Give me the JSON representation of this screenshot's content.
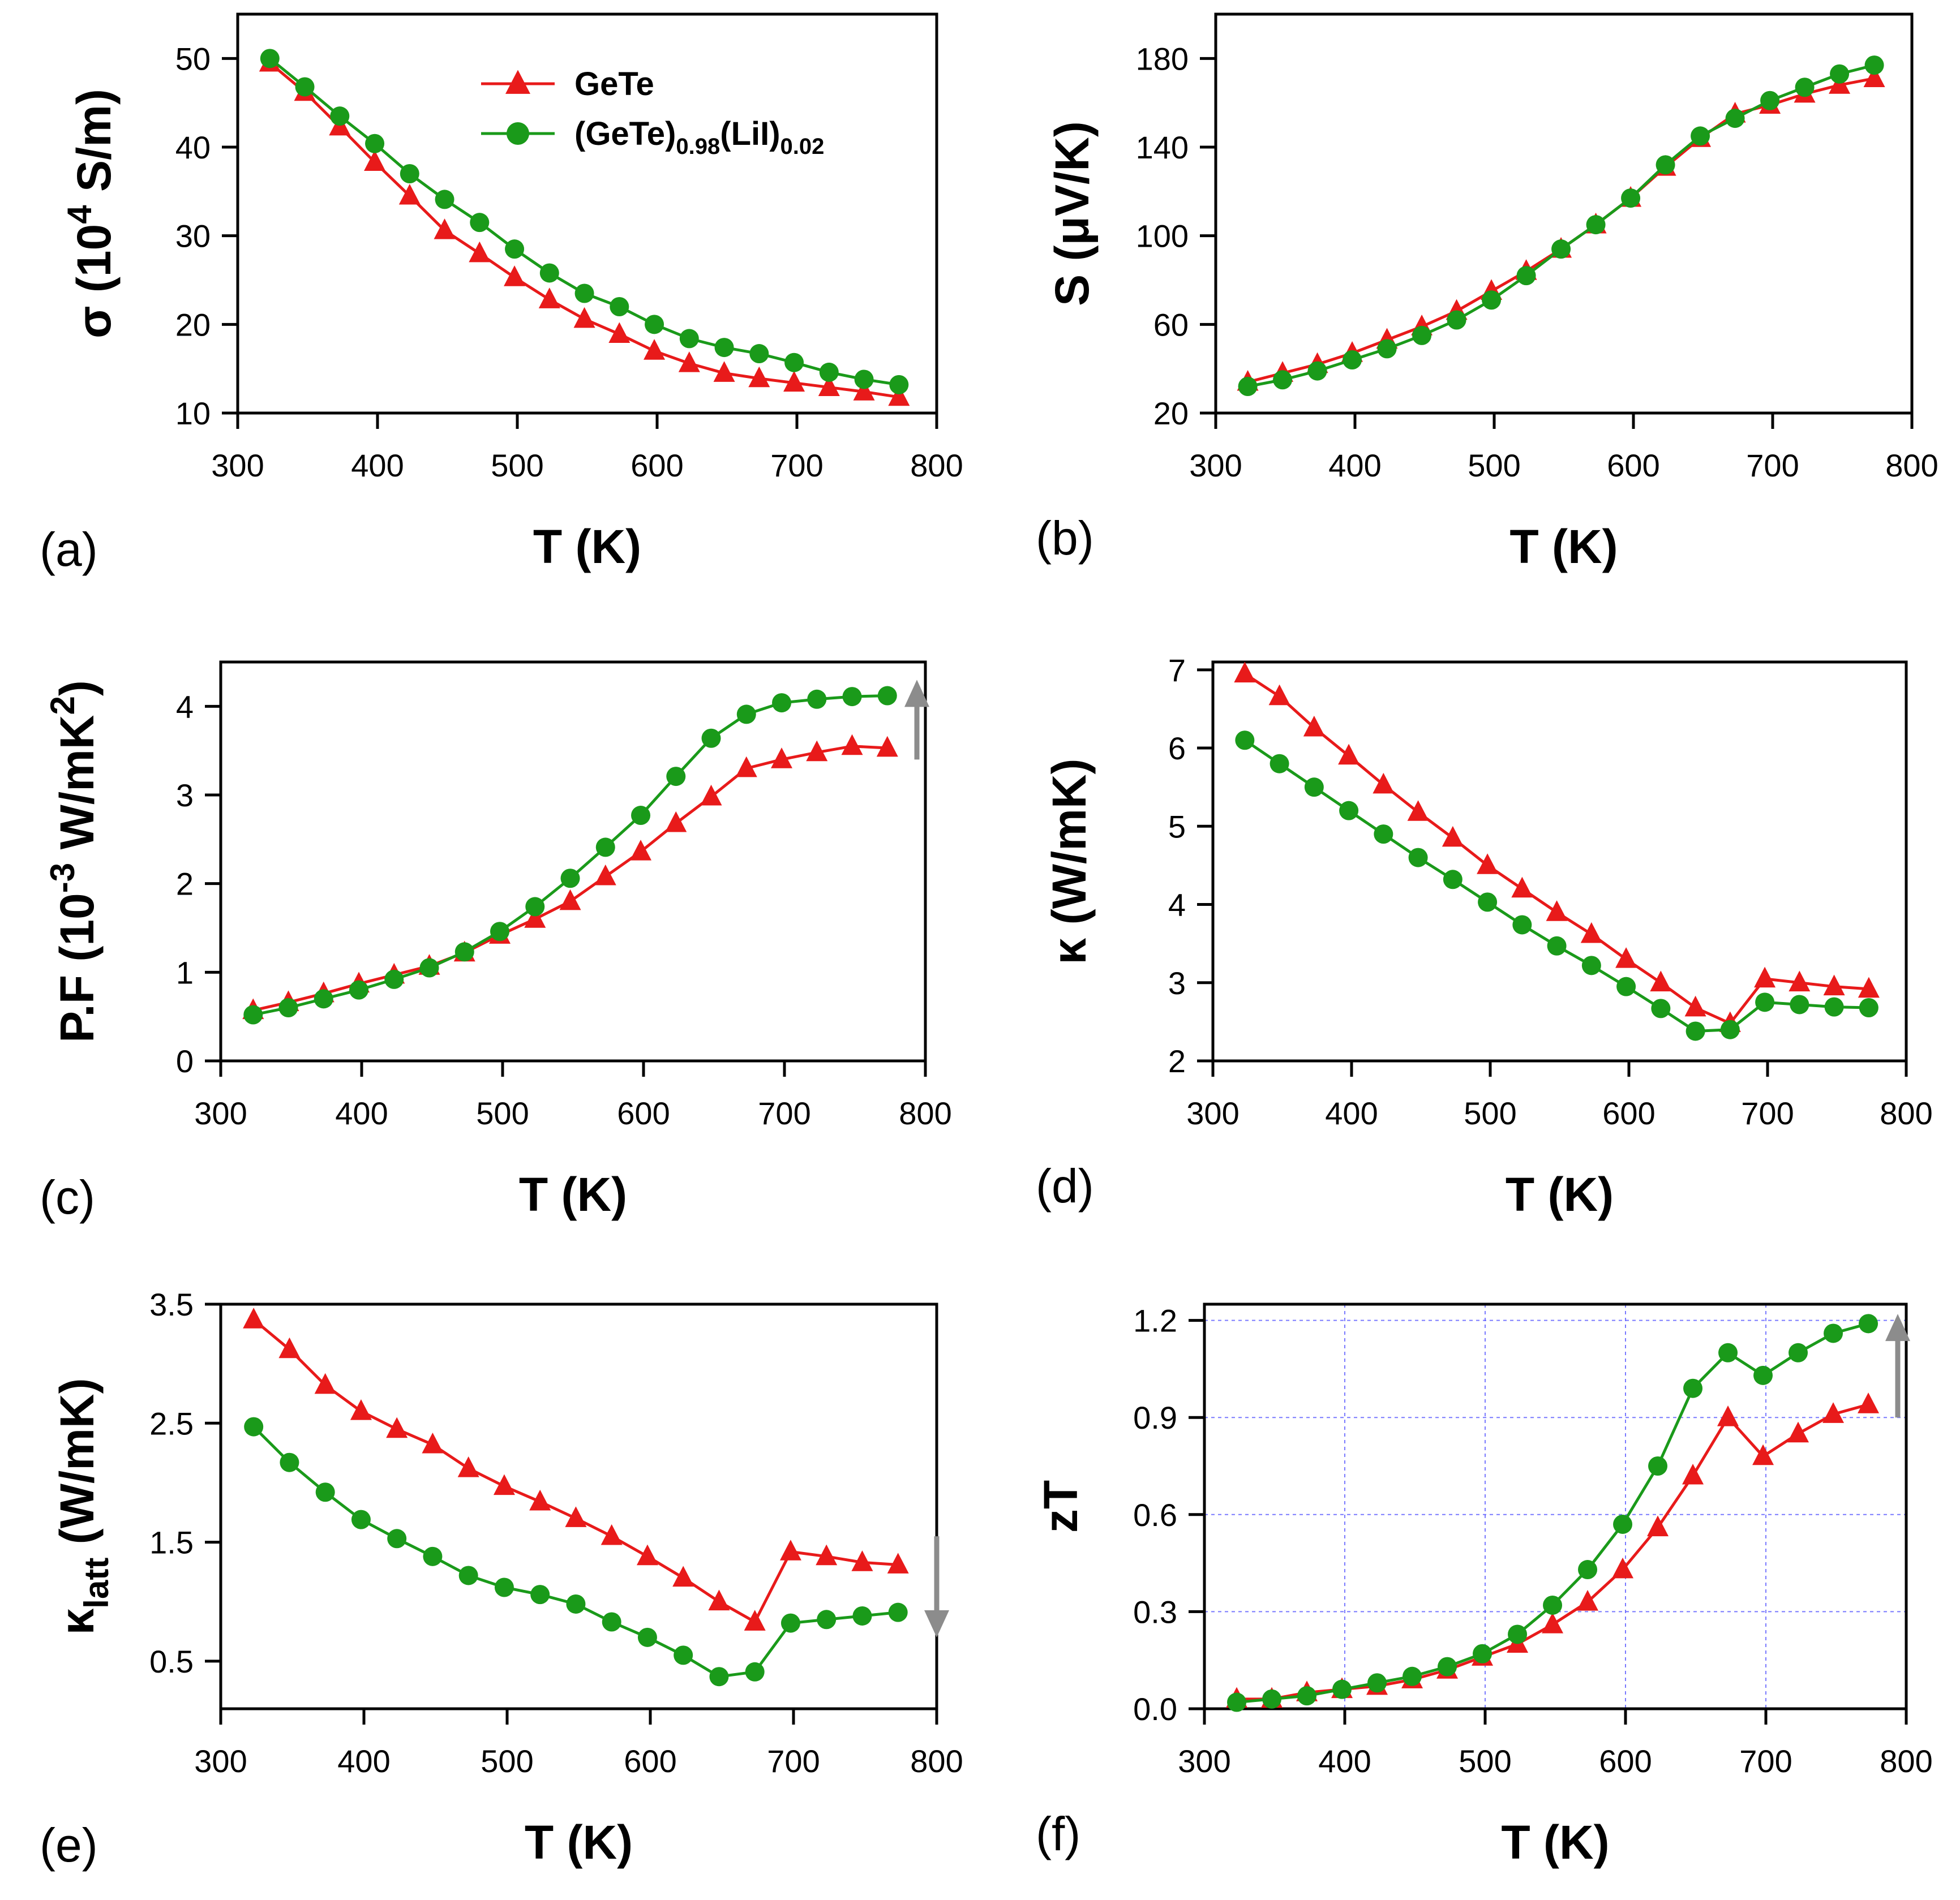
{
  "figure": {
    "legend": {
      "gete": "GeTe",
      "doped_base": "(GeTe)",
      "doped_sub1": "0.98",
      "doped_mid": "(LiI)",
      "doped_sub2": "0.02"
    },
    "colors": {
      "gete": "#e81a1a",
      "doped": "#1a9a1a",
      "arrow": "#8c8c8c",
      "grid": "#5a5aff"
    }
  },
  "chart_data": [
    {
      "id": "a",
      "panel_label": "(a)",
      "type": "line",
      "xlabel": "T (K)",
      "ylabel_main": "σ (10",
      "ylabel_sup": "4",
      "ylabel_tail": " S/m)",
      "xlim": [
        300,
        800
      ],
      "ylim": [
        10,
        55
      ],
      "xticks": [
        300,
        400,
        500,
        600,
        700,
        800
      ],
      "yticks": [
        10,
        20,
        30,
        40,
        50
      ],
      "x": [
        323,
        348,
        373,
        398,
        423,
        448,
        473,
        498,
        523,
        548,
        573,
        598,
        623,
        648,
        673,
        698,
        723,
        748,
        773
      ],
      "series": [
        {
          "name": "GeTe",
          "marker": "triangle",
          "values": [
            49.5,
            46.2,
            42.3,
            38.3,
            34.5,
            30.6,
            28.0,
            25.3,
            22.8,
            20.6,
            18.9,
            17.0,
            15.6,
            14.5,
            13.9,
            13.4,
            12.9,
            12.4,
            11.8
          ]
        },
        {
          "name": "(GeTe)0.98(LiI)0.02",
          "marker": "circle",
          "values": [
            50.0,
            46.8,
            43.5,
            40.4,
            37.0,
            34.1,
            31.5,
            28.5,
            25.8,
            23.5,
            22.0,
            20.0,
            18.4,
            17.4,
            16.7,
            15.7,
            14.6,
            13.8,
            13.2
          ]
        }
      ],
      "grid": false,
      "legend": "top-right"
    },
    {
      "id": "b",
      "panel_label": "(b)",
      "type": "line",
      "xlabel": "T (K)",
      "ylabel_main": "S (μV/K)",
      "ylabel_sup": "",
      "ylabel_tail": "",
      "xlim": [
        300,
        800
      ],
      "ylim": [
        20,
        200
      ],
      "xticks": [
        300,
        400,
        500,
        600,
        700,
        800
      ],
      "yticks": [
        20,
        60,
        100,
        140,
        180
      ],
      "x": [
        323,
        348,
        373,
        398,
        423,
        448,
        473,
        498,
        523,
        548,
        573,
        598,
        623,
        648,
        673,
        698,
        723,
        748,
        773
      ],
      "series": [
        {
          "name": "GeTe",
          "marker": "triangle",
          "values": [
            34,
            38,
            42,
            47,
            53,
            59,
            66,
            75,
            84,
            94,
            105,
            117,
            131,
            144,
            155,
            159,
            164,
            168,
            171
          ]
        },
        {
          "name": "(GeTe)0.98(LiI)0.02",
          "marker": "circle",
          "values": [
            32,
            35,
            39,
            44,
            49,
            55,
            62,
            71,
            82,
            94,
            105,
            117,
            132,
            145,
            153,
            161,
            167,
            173,
            177
          ]
        }
      ],
      "grid": false
    },
    {
      "id": "c",
      "panel_label": "(c)",
      "type": "line",
      "xlabel": "T (K)",
      "ylabel_main": "P.F (10",
      "ylabel_sup": "-3",
      "ylabel_tail": " W/mK",
      "ylabel_sup2": "2",
      "ylabel_end": ")",
      "xlim": [
        300,
        800
      ],
      "ylim": [
        0,
        4.5
      ],
      "xticks": [
        300,
        400,
        500,
        600,
        700,
        800
      ],
      "yticks": [
        0,
        1,
        2,
        3,
        4
      ],
      "x": [
        323,
        348,
        373,
        398,
        423,
        448,
        473,
        498,
        523,
        548,
        573,
        598,
        623,
        648,
        673,
        698,
        723,
        748,
        773
      ],
      "series": [
        {
          "name": "GeTe",
          "marker": "triangle",
          "values": [
            0.57,
            0.66,
            0.76,
            0.87,
            0.97,
            1.07,
            1.22,
            1.42,
            1.6,
            1.8,
            2.08,
            2.36,
            2.68,
            2.98,
            3.3,
            3.4,
            3.48,
            3.55,
            3.53
          ]
        },
        {
          "name": "(GeTe)0.98(LiI)0.02",
          "marker": "circle",
          "values": [
            0.52,
            0.6,
            0.7,
            0.8,
            0.92,
            1.05,
            1.23,
            1.46,
            1.74,
            2.06,
            2.41,
            2.77,
            3.21,
            3.64,
            3.91,
            4.04,
            4.08,
            4.11,
            4.12
          ]
        }
      ],
      "arrow": "up",
      "grid": false
    },
    {
      "id": "d",
      "panel_label": "(d)",
      "type": "line",
      "xlabel": "T (K)",
      "ylabel_main": "κ (W/mK)",
      "ylabel_sup": "",
      "ylabel_tail": "",
      "xlim": [
        300,
        800
      ],
      "ylim": [
        2,
        7.1
      ],
      "xticks": [
        300,
        400,
        500,
        600,
        700,
        800
      ],
      "yticks": [
        2,
        3,
        4,
        5,
        6,
        7
      ],
      "x": [
        323,
        348,
        373,
        398,
        423,
        448,
        473,
        498,
        523,
        548,
        573,
        598,
        623,
        648,
        673,
        698,
        723,
        748,
        773
      ],
      "series": [
        {
          "name": "GeTe",
          "marker": "triangle",
          "values": [
            6.95,
            6.66,
            6.26,
            5.9,
            5.53,
            5.18,
            4.85,
            4.5,
            4.2,
            3.9,
            3.62,
            3.3,
            3.0,
            2.68,
            2.48,
            3.05,
            3.0,
            2.95,
            2.92
          ]
        },
        {
          "name": "(GeTe)0.98(LiI)0.02",
          "marker": "circle",
          "values": [
            6.1,
            5.8,
            5.5,
            5.2,
            4.9,
            4.6,
            4.32,
            4.03,
            3.74,
            3.47,
            3.22,
            2.95,
            2.67,
            2.38,
            2.4,
            2.75,
            2.72,
            2.69,
            2.68
          ]
        }
      ],
      "grid": false
    },
    {
      "id": "e",
      "panel_label": "(e)",
      "type": "line",
      "xlabel": "T (K)",
      "ylabel_main": "κ",
      "ylabel_sub": "latt",
      "ylabel_tail": " (W/mK)",
      "xlim": [
        300,
        800
      ],
      "ylim": [
        0.1,
        3.5
      ],
      "xticks": [
        300,
        400,
        500,
        600,
        700,
        800
      ],
      "yticks": [
        0.5,
        1.5,
        2.5,
        3.5
      ],
      "x": [
        323,
        348,
        373,
        398,
        423,
        448,
        473,
        498,
        523,
        548,
        573,
        598,
        623,
        648,
        673,
        698,
        723,
        748,
        773
      ],
      "series": [
        {
          "name": "GeTe",
          "marker": "triangle",
          "values": [
            3.37,
            3.12,
            2.82,
            2.6,
            2.45,
            2.32,
            2.12,
            1.97,
            1.84,
            1.7,
            1.55,
            1.38,
            1.2,
            1.0,
            0.83,
            1.42,
            1.38,
            1.33,
            1.31
          ]
        },
        {
          "name": "(GeTe)0.98(LiI)0.02",
          "marker": "circle",
          "values": [
            2.47,
            2.17,
            1.92,
            1.69,
            1.53,
            1.38,
            1.22,
            1.12,
            1.06,
            0.98,
            0.83,
            0.7,
            0.55,
            0.37,
            0.41,
            0.82,
            0.85,
            0.88,
            0.91
          ]
        }
      ],
      "arrow": "down",
      "grid": false
    },
    {
      "id": "f",
      "panel_label": "(f)",
      "type": "line",
      "xlabel": "T (K)",
      "ylabel_main": "zT",
      "ylabel_sup": "",
      "ylabel_tail": "",
      "xlim": [
        300,
        800
      ],
      "ylim": [
        0,
        1.25
      ],
      "xticks": [
        300,
        400,
        500,
        600,
        700,
        800
      ],
      "yticks": [
        0.0,
        0.3,
        0.6,
        0.9,
        1.2
      ],
      "ytick_labels": [
        "0.0",
        "0.3",
        "0.6",
        "0.9",
        "1.2"
      ],
      "x": [
        323,
        348,
        373,
        398,
        423,
        448,
        473,
        498,
        523,
        548,
        573,
        598,
        623,
        648,
        673,
        698,
        723,
        748,
        773
      ],
      "series": [
        {
          "name": "GeTe",
          "marker": "triangle",
          "values": [
            0.03,
            0.03,
            0.05,
            0.06,
            0.07,
            0.09,
            0.12,
            0.16,
            0.2,
            0.26,
            0.33,
            0.43,
            0.56,
            0.72,
            0.9,
            0.78,
            0.85,
            0.91,
            0.94
          ]
        },
        {
          "name": "(GeTe)0.98(LiI)0.02",
          "marker": "circle",
          "values": [
            0.02,
            0.03,
            0.04,
            0.06,
            0.08,
            0.1,
            0.13,
            0.17,
            0.23,
            0.32,
            0.43,
            0.57,
            0.75,
            0.99,
            1.1,
            1.03,
            1.1,
            1.16,
            1.19
          ]
        }
      ],
      "arrow": "up",
      "grid": true
    }
  ]
}
